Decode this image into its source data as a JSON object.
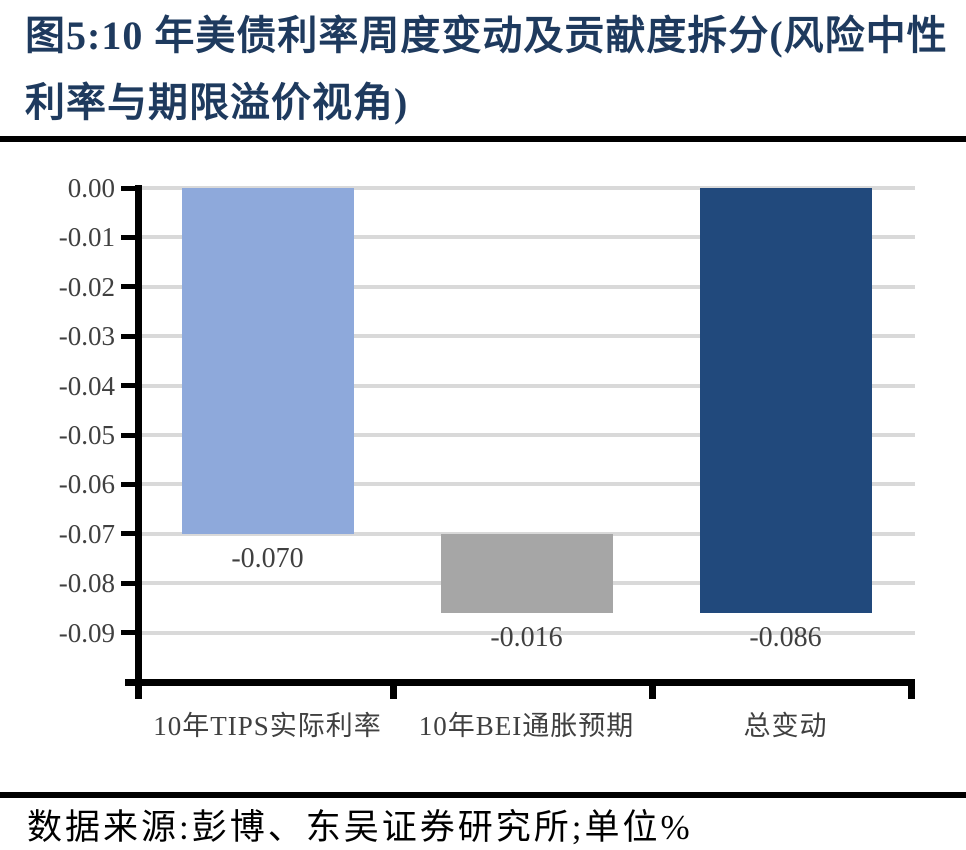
{
  "figure": {
    "title_line1": "图5:10 年美债利率周度变动及贡献度拆分(风险中性",
    "title_line2": "利率与期限溢价视角)",
    "source_note": "数据来源:彭博、东吴证券研究所;单位%"
  },
  "chart_data": {
    "type": "bar",
    "subtype": "waterfall-contribution",
    "title": "10 年美债利率周度变动及贡献度拆分(风险中性利率与期限溢价视角)",
    "unit": "%",
    "categories": [
      "10年TIPS实际利率",
      "10年BEI通胀预期",
      "总变动"
    ],
    "values": [
      -0.07,
      -0.016,
      -0.086
    ],
    "value_labels": [
      "-0.070",
      "-0.016",
      "-0.086"
    ],
    "bar_segments": [
      {
        "start": 0,
        "end": -0.07
      },
      {
        "start": -0.07,
        "end": -0.086
      },
      {
        "start": 0,
        "end": -0.086
      }
    ],
    "bar_colors": [
      "#8EA9DB",
      "#A6A6A6",
      "#21497C"
    ],
    "y_ticks": [
      "0.00",
      "-0.01",
      "-0.02",
      "-0.03",
      "-0.04",
      "-0.05",
      "-0.06",
      "-0.07",
      "-0.08",
      "-0.09"
    ],
    "ylim": [
      0,
      -0.1
    ],
    "grid": true,
    "legend": false,
    "gridline_color": "#D9D9D9",
    "axis_color": "#000000",
    "label_color": "#404040"
  }
}
